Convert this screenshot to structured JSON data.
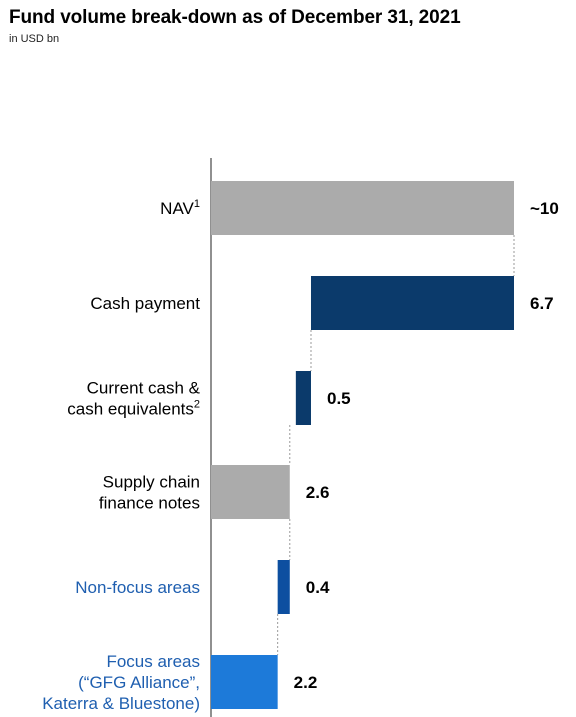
{
  "title": "Fund volume break-down as of December 31, 2021",
  "subtitle": "in USD bn",
  "colors": {
    "grey": "#ababab",
    "navy": "#0b3a6b",
    "dark_blue": "#0d4fa0",
    "light_blue": "#1d7ad9",
    "blue_text": "#1f5fb0"
  },
  "chart_data": {
    "type": "bar",
    "orientation": "horizontal",
    "style": "waterfall",
    "title": "Fund volume break-down as of December 31, 2021",
    "subtitle": "in USD bn",
    "xlim": [
      0,
      10
    ],
    "grid": false,
    "bars": [
      {
        "lines": [
          "NAV"
        ],
        "sup": "1",
        "value_label": "~10",
        "start": 0,
        "end": 10,
        "color": "grey",
        "text_color": "#000000"
      },
      {
        "lines": [
          "Cash payment"
        ],
        "sup": "",
        "value_label": "6.7",
        "start": 3.3,
        "end": 10,
        "color": "navy",
        "text_color": "#000000"
      },
      {
        "lines": [
          "Current cash &",
          "cash equivalents"
        ],
        "sup": "2",
        "value_label": "0.5",
        "start": 2.8,
        "end": 3.3,
        "color": "navy",
        "text_color": "#000000"
      },
      {
        "lines": [
          "Supply chain",
          "finance notes"
        ],
        "sup": "",
        "value_label": "2.6",
        "start": 0,
        "end": 2.6,
        "color": "grey",
        "text_color": "#000000"
      },
      {
        "lines": [
          "Non-focus areas"
        ],
        "sup": "",
        "value_label": "0.4",
        "start": 2.2,
        "end": 2.6,
        "color": "dark_blue",
        "text_color": "#1f5fb0"
      },
      {
        "lines": [
          "Focus areas",
          "(“GFG Alliance”,",
          "Katerra & Bluestone)"
        ],
        "sup": "",
        "value_label": "2.2",
        "start": 0,
        "end": 2.2,
        "color": "light_blue",
        "text_color": "#1f5fb0"
      }
    ]
  }
}
